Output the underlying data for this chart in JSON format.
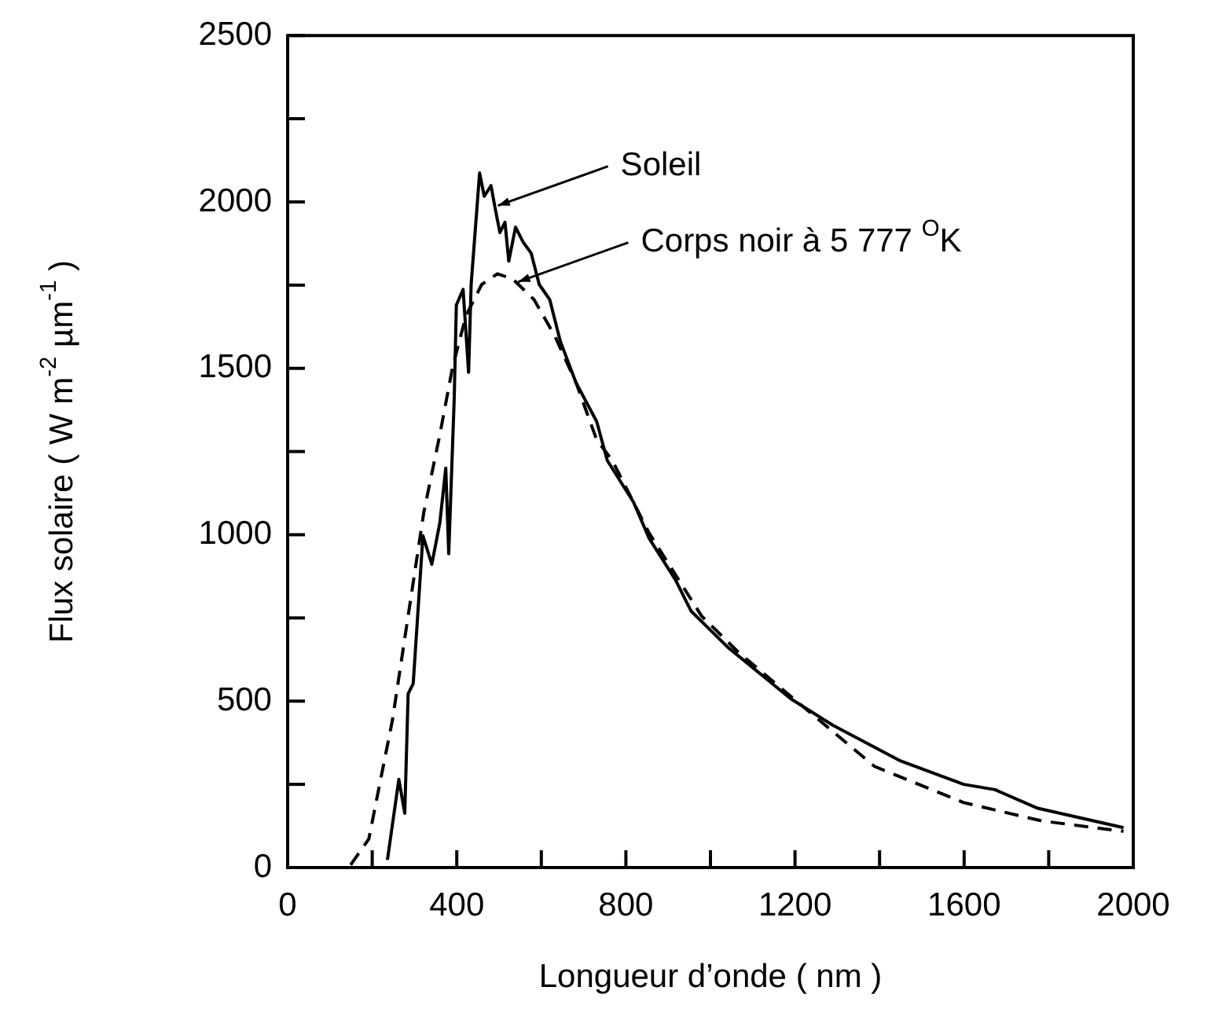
{
  "chart_data": {
    "type": "line",
    "xlabel": "Longueur d’onde ( nm )",
    "ylabel": "Flux solaire ( W m$^{-2}$ µm$^{-1}$ )",
    "xlim": [
      0,
      2000
    ],
    "ylim": [
      0,
      2500
    ],
    "xticks": [
      0,
      {
        "value": 200,
        "label": null
      },
      400,
      {
        "value": 600,
        "label": null
      },
      800,
      {
        "value": 1000,
        "label": null
      },
      1200,
      {
        "value": 1400,
        "label": null
      },
      1600,
      {
        "value": 1800,
        "label": null
      },
      2000
    ],
    "yticks": [
      0,
      {
        "value": 250,
        "label": null
      },
      500,
      {
        "value": 750,
        "label": null
      },
      1000,
      {
        "value": 1250,
        "label": null
      },
      1500,
      {
        "value": 1750,
        "label": null
      },
      2000,
      {
        "value": 2250,
        "label": null
      },
      2500
    ],
    "grid": false,
    "legend": false,
    "marker": "none",
    "series": [
      {
        "color": "#000000",
        "line_style": "solid",
        "x": [
          236,
          263,
          277,
          285,
          297,
          320,
          341,
          360,
          374,
          381,
          394,
          399,
          415,
          428,
          434,
          454,
          465,
          481,
          490,
          502,
          514,
          523,
          539,
          558,
          576,
          595,
          620,
          645,
          682,
          731,
          756,
          818,
          855,
          917,
          954,
          1041,
          1190,
          1289,
          1450,
          1599,
          1673,
          1772,
          1977
        ],
        "values": [
          23,
          265,
          163,
          522,
          553,
          997,
          911,
          1036,
          1200,
          943,
          1410,
          1690,
          1737,
          1488,
          1752,
          2087,
          2017,
          2049,
          1986,
          1908,
          1939,
          1822,
          1924,
          1877,
          1846,
          1752,
          1706,
          1581,
          1457,
          1340,
          1223,
          1098,
          989,
          865,
          771,
          662,
          507,
          428,
          320,
          250,
          234,
          179,
          120
        ]
      },
      {
        "color": "#000000",
        "line_style": "dashed",
        "x": [
          149,
          192,
          248,
          285,
          322,
          360,
          390,
          422,
          459,
          496,
          533,
          583,
          632,
          682,
          731,
          768,
          855,
          979,
          1066,
          1227,
          1388,
          1599,
          1784,
          1977
        ],
        "values": [
          8,
          86,
          444,
          756,
          1067,
          1301,
          1503,
          1659,
          1752,
          1784,
          1768,
          1706,
          1597,
          1457,
          1285,
          1223,
          1005,
          756,
          647,
          475,
          304,
          195,
          140,
          109
        ]
      }
    ],
    "annotations": [
      {
        "text": "Soleil",
        "x": 490,
        "y": 1989
      },
      {
        "text": "Corps noir à 5 777 $^{O}$K",
        "x": 538,
        "y": 1760
      }
    ]
  }
}
